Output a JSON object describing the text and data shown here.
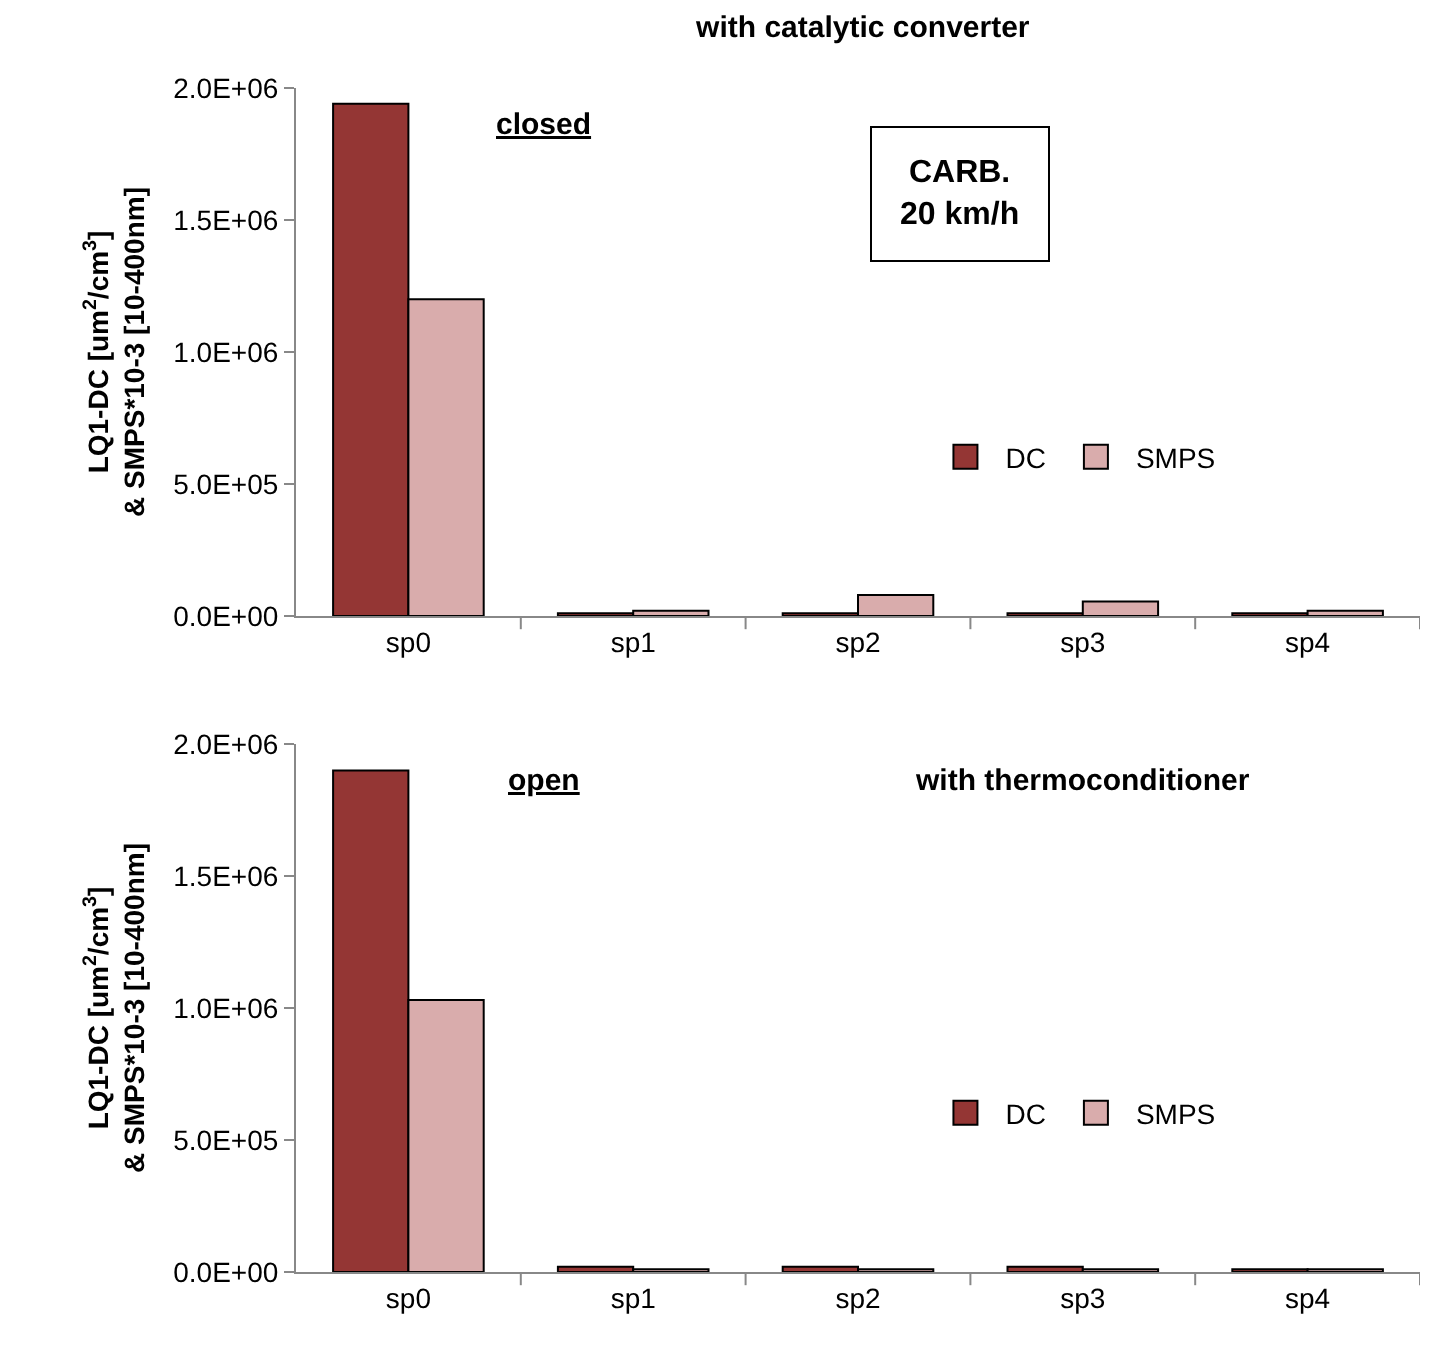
{
  "chart_data": [
    {
      "type": "bar",
      "title": "with catalytic converter",
      "ylabel": "LQ1-DC [um$^{2}$/cm$^{3}$]\n& SMPS*10-3 [10-400nm]",
      "categories": [
        "sp0",
        "sp1",
        "sp2",
        "sp3",
        "sp4"
      ],
      "series": [
        {
          "name": "DC",
          "color": "#943634",
          "values": [
            1940000,
            10000,
            10000,
            10000,
            10000
          ]
        },
        {
          "name": "SMPS",
          "color": "#d9acac",
          "values": [
            1200000,
            20000,
            80000,
            55000,
            20000
          ]
        }
      ],
      "ylim": [
        0,
        2000000
      ],
      "yticks": [
        {
          "value": 0,
          "label": "0.0E+00"
        },
        {
          "value": 500000,
          "label": "5.0E+05"
        },
        {
          "value": 1000000,
          "label": "1.0E+06"
        },
        {
          "value": 1500000,
          "label": "1.5E+06"
        },
        {
          "value": 2000000,
          "label": "2.0E+06"
        }
      ],
      "annotations": [
        "closed",
        "CARB.\n20 km/h"
      ],
      "grid": false,
      "legend": "right"
    },
    {
      "type": "bar",
      "ylabel": "LQ1-DC [um$^{2}$/cm$^{3}$]\n& SMPS*10-3 [10-400nm]",
      "categories": [
        "sp0",
        "sp1",
        "sp2",
        "sp3",
        "sp4"
      ],
      "series": [
        {
          "name": "DC",
          "color": "#943634",
          "values": [
            1900000,
            20000,
            20000,
            20000,
            10000
          ]
        },
        {
          "name": "SMPS",
          "color": "#d9acac",
          "values": [
            1030000,
            10000,
            10000,
            10000,
            10000
          ]
        }
      ],
      "ylim": [
        0,
        2000000
      ],
      "yticks": [
        {
          "value": 0,
          "label": "0.0E+00"
        },
        {
          "value": 500000,
          "label": "5.0E+05"
        },
        {
          "value": 1000000,
          "label": "1.0E+06"
        },
        {
          "value": 1500000,
          "label": "1.5E+06"
        },
        {
          "value": 2000000,
          "label": "2.0E+06"
        }
      ],
      "annotations": [
        "open",
        "with thermoconditioner"
      ],
      "grid": false,
      "legend": "right"
    }
  ]
}
